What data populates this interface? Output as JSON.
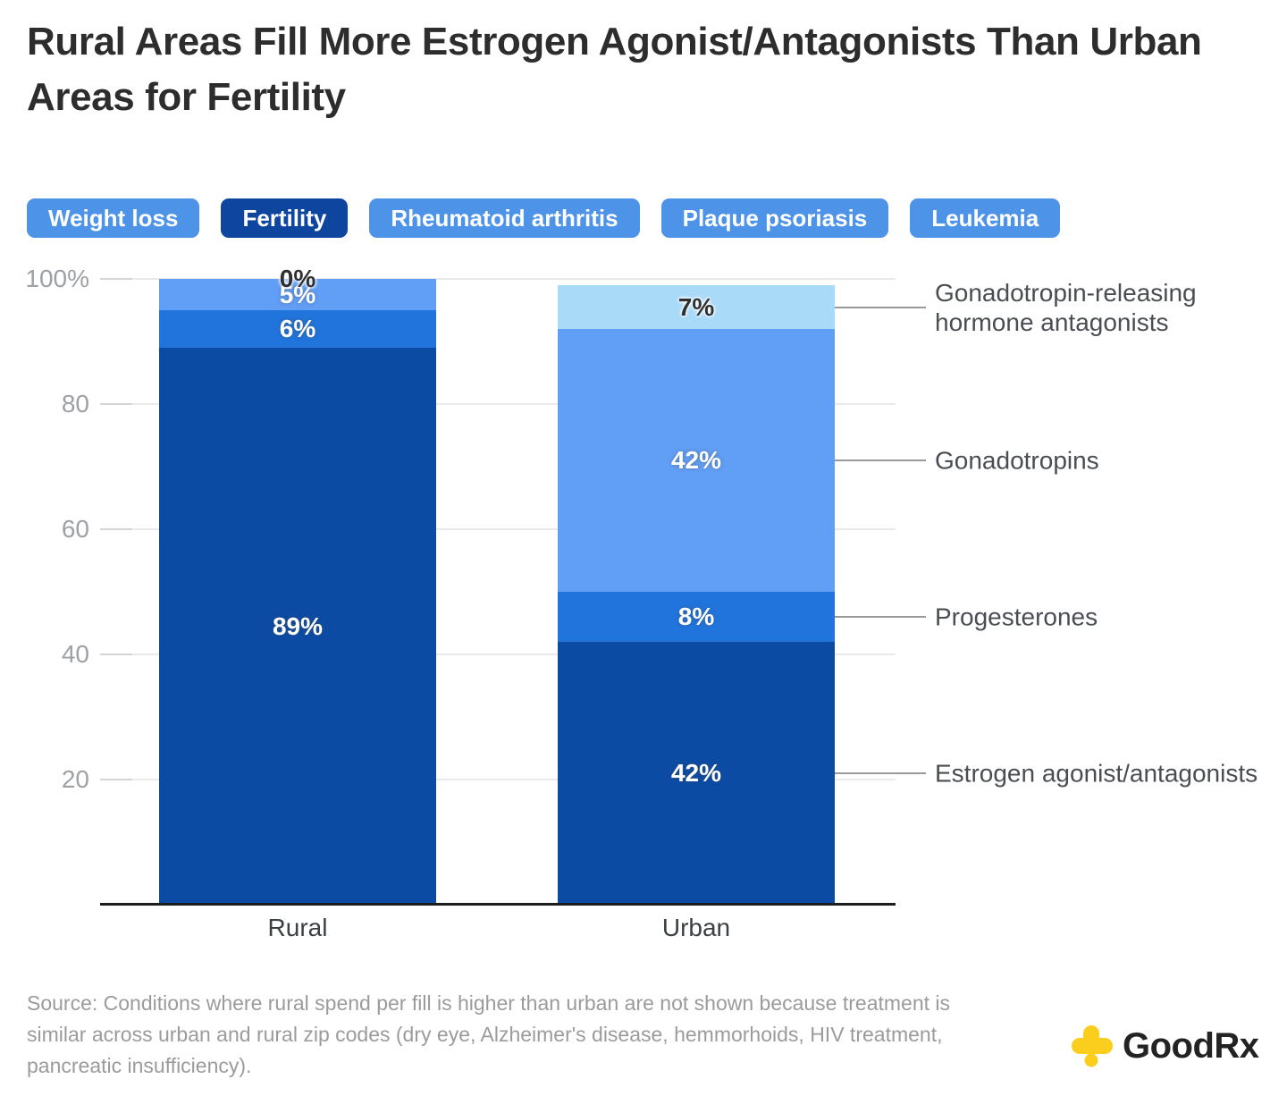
{
  "title": "Rural Areas Fill More Estrogen Agonist/Antagonists Than Urban Areas for Fertility",
  "tabs": [
    {
      "label": "Weight loss",
      "selected": false
    },
    {
      "label": "Fertility",
      "selected": true
    },
    {
      "label": "Rheumatoid arthritis",
      "selected": false
    },
    {
      "label": "Plaque psoriasis",
      "selected": false
    },
    {
      "label": "Leukemia",
      "selected": false
    }
  ],
  "colors": {
    "tab_default": "#4D93E8",
    "tab_selected": "#0E459E",
    "axis_label": "#9DA1A6",
    "gridline": "#EBEBEB",
    "baseline": "#1D1D1D",
    "connector": "#9A9A9A",
    "legend_text": "#4A4E52",
    "goodrx_yellow": "#FBCE1E",
    "goodrx_text": "#232323"
  },
  "chart_data": {
    "type": "bar",
    "stacked": true,
    "categories": [
      "Rural",
      "Urban"
    ],
    "series": [
      {
        "name": "Estrogen agonist/antagonists",
        "values": [
          89,
          42
        ],
        "color": "#0C4BA4",
        "dark_label": false
      },
      {
        "name": "Progesterones",
        "values": [
          6,
          8
        ],
        "color": "#2174DB",
        "dark_label": false
      },
      {
        "name": "Gonadotropins",
        "values": [
          5,
          42
        ],
        "color": "#619EF6",
        "dark_label": false
      },
      {
        "name": "Gonadotropin-releasing hormone antagonists",
        "values": [
          0,
          7
        ],
        "color": "#A9DAF8",
        "dark_label": true
      }
    ],
    "value_suffix": "%",
    "ylim": [
      0,
      100
    ],
    "y_ticks": [
      {
        "value": 100,
        "label": "100%"
      },
      {
        "value": 80,
        "label": "80"
      },
      {
        "value": 60,
        "label": "60"
      },
      {
        "value": 40,
        "label": "40"
      },
      {
        "value": 20,
        "label": "20"
      }
    ],
    "grid": true,
    "legend_position": "right"
  },
  "source": "Source: Conditions where rural spend per fill is higher than urban are not shown because treatment is similar across urban and rural zip codes (dry eye, Alzheimer's disease, hemmorhoids, HIV treatment, pancreatic insufficiency).",
  "logo": {
    "text": "GoodRx"
  }
}
